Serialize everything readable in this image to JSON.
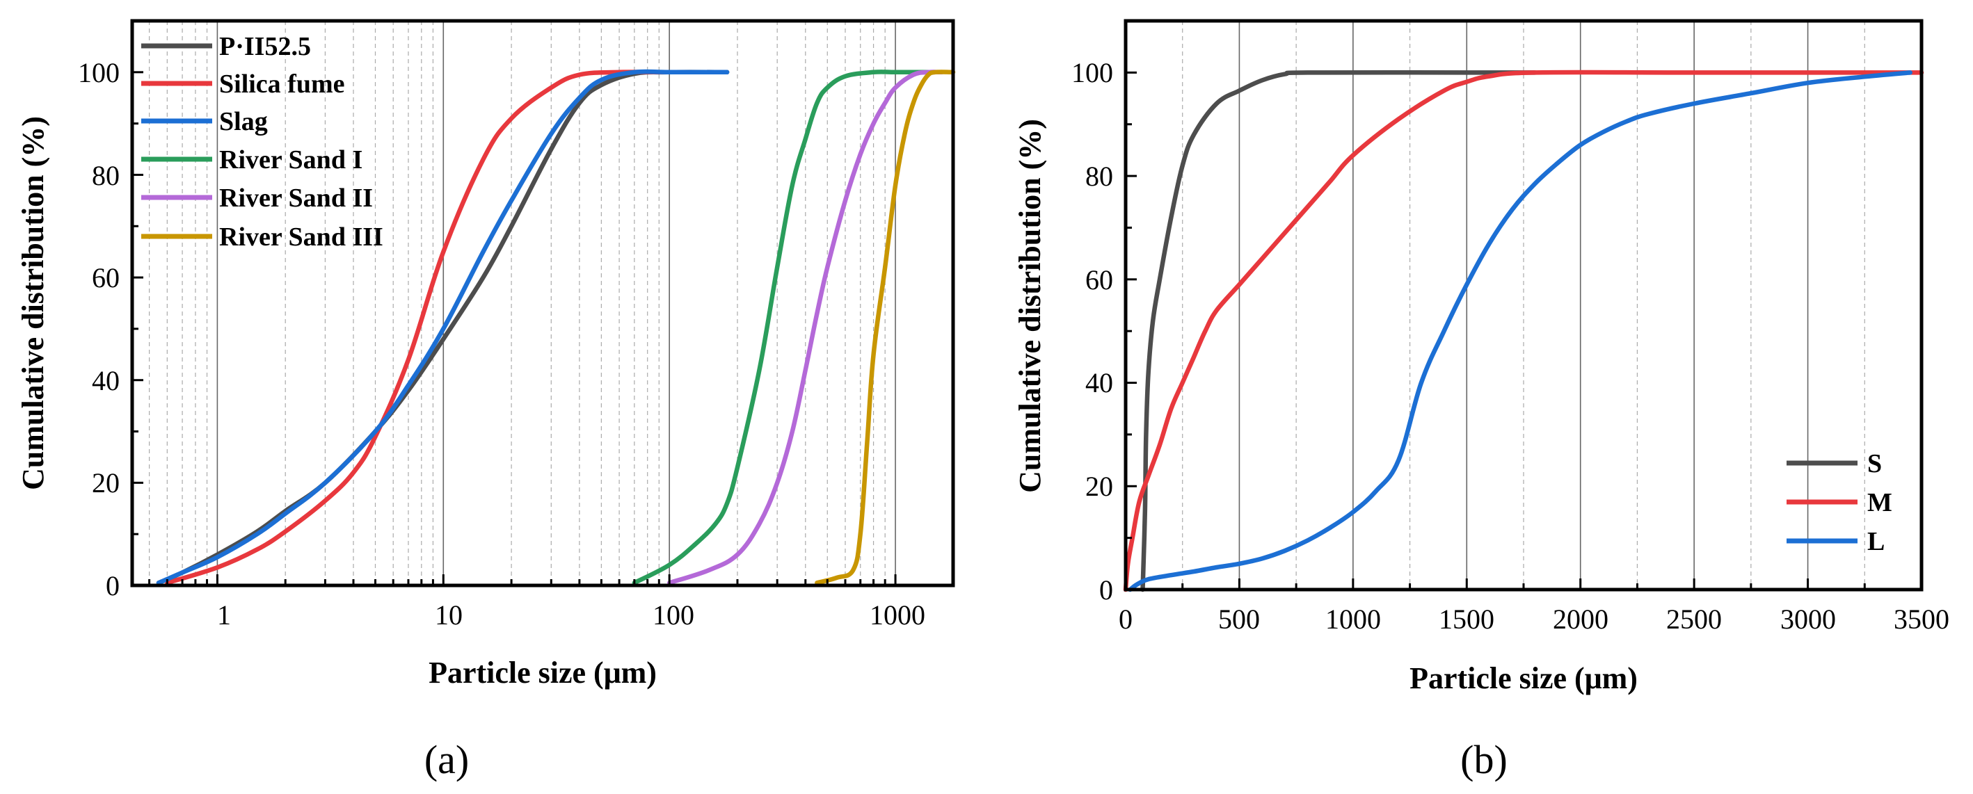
{
  "chart_data": [
    {
      "type": "line",
      "panel_label": "(a)",
      "xscale": "log",
      "xlabel": "Particle size (μm)",
      "ylabel": "Cumulative distribution (%)",
      "xlim": [
        0.42,
        1800
      ],
      "ylim": [
        0,
        110
      ],
      "x_ticks": [
        1,
        10,
        100,
        1000
      ],
      "x_tick_labels": [
        "1",
        "10",
        "100",
        "1000"
      ],
      "y_ticks": [
        0,
        20,
        40,
        60,
        80,
        100
      ],
      "y_tick_labels": [
        "0",
        "20",
        "40",
        "60",
        "80",
        "100"
      ],
      "grid": "vertical major and minor",
      "legend_position": "top-left",
      "series": [
        {
          "name": "P·II52.5",
          "color": "#4d4d4d",
          "points": [
            [
              0.55,
              0.5
            ],
            [
              0.7,
              2.5
            ],
            [
              1,
              6
            ],
            [
              1.5,
              10.5
            ],
            [
              2,
              14.5
            ],
            [
              3,
              20
            ],
            [
              5,
              30
            ],
            [
              7,
              38
            ],
            [
              10,
              48
            ],
            [
              15,
              60
            ],
            [
              20,
              70
            ],
            [
              30,
              85
            ],
            [
              40,
              94
            ],
            [
              50,
              97.5
            ],
            [
              70,
              99.7
            ],
            [
              100,
              100
            ],
            [
              180,
              100
            ]
          ]
        },
        {
          "name": "Silica fume",
          "color": "#e8383d",
          "points": [
            [
              0.6,
              0.5
            ],
            [
              1,
              3.5
            ],
            [
              1.5,
              7
            ],
            [
              2,
              10.5
            ],
            [
              3,
              16.5
            ],
            [
              4,
              22
            ],
            [
              5,
              29
            ],
            [
              7,
              44
            ],
            [
              10,
              65
            ],
            [
              15,
              83
            ],
            [
              20,
              91
            ],
            [
              30,
              97
            ],
            [
              40,
              99.5
            ],
            [
              60,
              100
            ],
            [
              100,
              100
            ]
          ]
        },
        {
          "name": "Slag",
          "color": "#1c6fd4",
          "points": [
            [
              0.55,
              0.5
            ],
            [
              0.7,
              2.5
            ],
            [
              1,
              5.5
            ],
            [
              1.5,
              10
            ],
            [
              2,
              14
            ],
            [
              3,
              20
            ],
            [
              5,
              30
            ],
            [
              7,
              39
            ],
            [
              10,
              50
            ],
            [
              15,
              65
            ],
            [
              20,
              75
            ],
            [
              30,
              88
            ],
            [
              40,
              95
            ],
            [
              50,
              98.5
            ],
            [
              70,
              100
            ],
            [
              100,
              100
            ],
            [
              180,
              100
            ]
          ]
        },
        {
          "name": "River Sand I",
          "color": "#2a9d5b",
          "points": [
            [
              70,
              0.5
            ],
            [
              100,
              4
            ],
            [
              130,
              8
            ],
            [
              160,
              12
            ],
            [
              180,
              16
            ],
            [
              200,
              23
            ],
            [
              250,
              42
            ],
            [
              300,
              62
            ],
            [
              350,
              78
            ],
            [
              400,
              87
            ],
            [
              450,
              94
            ],
            [
              500,
              97
            ],
            [
              600,
              99.2
            ],
            [
              800,
              100
            ],
            [
              1000,
              100
            ],
            [
              1400,
              100
            ]
          ]
        },
        {
          "name": "River Sand II",
          "color": "#b469d8",
          "points": [
            [
              100,
              0.5
            ],
            [
              150,
              3
            ],
            [
              200,
              6
            ],
            [
              250,
              12
            ],
            [
              300,
              20
            ],
            [
              350,
              30
            ],
            [
              400,
              42
            ],
            [
              450,
              53
            ],
            [
              500,
              62
            ],
            [
              600,
              75
            ],
            [
              700,
              84
            ],
            [
              800,
              90
            ],
            [
              900,
              94
            ],
            [
              1000,
              97
            ],
            [
              1200,
              99.5
            ],
            [
              1400,
              100
            ],
            [
              1600,
              100
            ]
          ]
        },
        {
          "name": "River Sand III",
          "color": "#c89600",
          "points": [
            [
              450,
              0.5
            ],
            [
              550,
              1.5
            ],
            [
              650,
              3
            ],
            [
              700,
              10
            ],
            [
              750,
              28
            ],
            [
              800,
              45
            ],
            [
              900,
              62
            ],
            [
              1000,
              78
            ],
            [
              1100,
              88
            ],
            [
              1200,
              94
            ],
            [
              1300,
              97.5
            ],
            [
              1400,
              99.5
            ],
            [
              1500,
              100
            ],
            [
              1800,
              100
            ]
          ]
        }
      ]
    },
    {
      "type": "line",
      "panel_label": "(b)",
      "xscale": "linear",
      "xlabel": "Particle size (μm)",
      "ylabel": "Cumulative distribution (%)",
      "xlim": [
        0,
        3500
      ],
      "ylim": [
        0,
        110
      ],
      "x_ticks": [
        0,
        500,
        1000,
        1500,
        2000,
        2500,
        3000,
        3500
      ],
      "x_tick_labels": [
        "0",
        "500",
        "1000",
        "1500",
        "2000",
        "2500",
        "3000",
        "3500"
      ],
      "y_ticks": [
        0,
        20,
        40,
        60,
        80,
        100
      ],
      "y_tick_labels": [
        "0",
        "20",
        "40",
        "60",
        "80",
        "100"
      ],
      "grid": "vertical major and minor",
      "legend_position": "bottom-right",
      "series": [
        {
          "name": "S",
          "color": "#4d4d4d",
          "points": [
            [
              75,
              0
            ],
            [
              85,
              15
            ],
            [
              90,
              30
            ],
            [
              100,
              42
            ],
            [
              120,
              52
            ],
            [
              150,
              60
            ],
            [
              200,
              72
            ],
            [
              250,
              82
            ],
            [
              300,
              88
            ],
            [
              400,
              94
            ],
            [
              500,
              96.5
            ],
            [
              600,
              98.5
            ],
            [
              700,
              99.7
            ],
            [
              800,
              100
            ],
            [
              1500,
              100
            ],
            [
              1800,
              100
            ]
          ]
        },
        {
          "name": "M",
          "color": "#e8383d",
          "points": [
            [
              0,
              0
            ],
            [
              10,
              5
            ],
            [
              30,
              10
            ],
            [
              60,
              17
            ],
            [
              100,
              22
            ],
            [
              150,
              28
            ],
            [
              200,
              35
            ],
            [
              250,
              40
            ],
            [
              300,
              45
            ],
            [
              350,
              50
            ],
            [
              400,
              54
            ],
            [
              500,
              59
            ],
            [
              600,
              64
            ],
            [
              700,
              69
            ],
            [
              800,
              74
            ],
            [
              900,
              79
            ],
            [
              1000,
              84
            ],
            [
              1200,
              91
            ],
            [
              1400,
              96.5
            ],
            [
              1500,
              98.2
            ],
            [
              1600,
              99.3
            ],
            [
              1800,
              100
            ],
            [
              2500,
              100
            ],
            [
              3500,
              100
            ]
          ]
        },
        {
          "name": "L",
          "color": "#1c6fd4",
          "points": [
            [
              20,
              0
            ],
            [
              50,
              1
            ],
            [
              100,
              2
            ],
            [
              200,
              2.8
            ],
            [
              300,
              3.5
            ],
            [
              400,
              4.3
            ],
            [
              500,
              5
            ],
            [
              600,
              6
            ],
            [
              700,
              7.5
            ],
            [
              800,
              9.5
            ],
            [
              900,
              12
            ],
            [
              1000,
              15
            ],
            [
              1100,
              19
            ],
            [
              1200,
              25
            ],
            [
              1300,
              40
            ],
            [
              1400,
              50
            ],
            [
              1500,
              59
            ],
            [
              1600,
              67
            ],
            [
              1700,
              73.5
            ],
            [
              1800,
              78.5
            ],
            [
              1900,
              82.5
            ],
            [
              2000,
              86
            ],
            [
              2100,
              88.5
            ],
            [
              2200,
              90.5
            ],
            [
              2300,
              92
            ],
            [
              2500,
              94
            ],
            [
              2750,
              96
            ],
            [
              3000,
              98
            ],
            [
              3250,
              99.2
            ],
            [
              3450,
              100
            ]
          ]
        }
      ]
    }
  ]
}
